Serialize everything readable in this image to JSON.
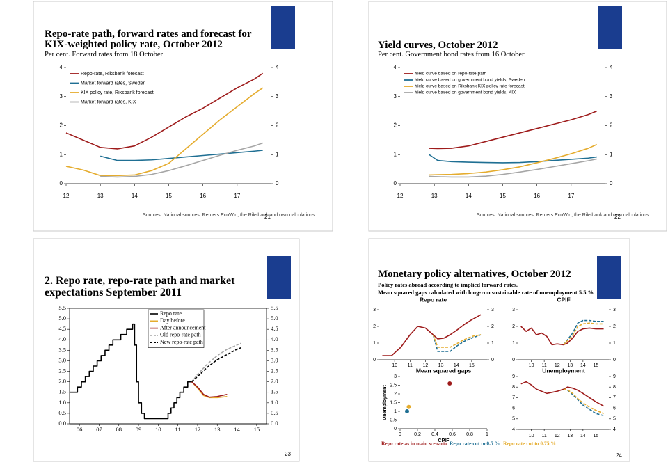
{
  "slides": [
    {
      "title": "Repo-rate path, forward rates and forecast for KIX-weighted policy rate, October 2012",
      "subtitle": "Per cent. Forward rates from 18 October",
      "source": "Sources: National sources, Reuters EcoWin, the Riksbank and own calculations",
      "page": "21"
    },
    {
      "title": "Yield curves, October 2012",
      "subtitle": "Per cent. Government bond rates from 16 October",
      "source": "Sources: National sources, Reuters EcoWin, the Riksbank and own calculations",
      "page": "22"
    },
    {
      "title": "2. Repo rate, repo-rate path and market expectations September 2011",
      "page": "23"
    },
    {
      "title": "Monetary policy alternatives, October 2012",
      "subtitle": "Policy rates abroad according to implied forward rates.",
      "note": "Mean squared gaps calculated with long-run sustainable rate of unemployment 5.5 %",
      "page": "24"
    }
  ],
  "chart_data": [
    {
      "type": "line",
      "x": [
        12,
        12.5,
        13,
        13.5,
        14,
        14.5,
        15,
        15.5,
        16,
        16.5,
        17,
        17.5,
        17.75
      ],
      "xlim": [
        12,
        18
      ],
      "xticks": [
        12,
        13,
        14,
        15,
        16,
        17
      ],
      "ylim": [
        0,
        4
      ],
      "yticks": [
        0,
        1,
        2,
        3,
        4
      ],
      "y2lim": [
        0,
        4
      ],
      "y2ticks": [
        0,
        1,
        2,
        3,
        4
      ],
      "legend": "upper left",
      "series": [
        {
          "name": "Repo-rate, Riksbank forecast",
          "color": "#9e1b1b",
          "values": [
            1.75,
            1.5,
            1.25,
            1.2,
            1.3,
            1.6,
            1.95,
            2.3,
            2.6,
            2.95,
            3.3,
            3.6,
            3.8
          ]
        },
        {
          "name": "Market forward rates, Sweden",
          "color": "#1f6f93",
          "values": [
            null,
            null,
            0.95,
            0.8,
            0.8,
            0.82,
            0.87,
            0.92,
            0.97,
            1.02,
            1.07,
            1.12,
            1.15
          ]
        },
        {
          "name": "KIX policy rate, Riksbank forecast",
          "color": "#e5ac2e",
          "values": [
            0.6,
            0.47,
            0.28,
            0.28,
            0.3,
            0.45,
            0.7,
            1.2,
            1.7,
            2.2,
            2.65,
            3.1,
            3.3
          ]
        },
        {
          "name": "Market forward rates, KIX",
          "color": "#a6a6a6",
          "values": [
            null,
            null,
            0.25,
            0.23,
            0.25,
            0.32,
            0.45,
            0.62,
            0.8,
            0.98,
            1.15,
            1.3,
            1.4
          ]
        }
      ]
    },
    {
      "type": "line",
      "x": [
        12.85,
        13.1,
        13.5,
        14,
        14.5,
        15,
        15.5,
        16,
        16.5,
        17,
        17.5,
        17.75
      ],
      "xlim": [
        12,
        18
      ],
      "xticks": [
        12,
        13,
        14,
        15,
        16,
        17
      ],
      "ylim": [
        0,
        4
      ],
      "yticks": [
        0,
        1,
        2,
        3,
        4
      ],
      "y2lim": [
        0,
        4
      ],
      "y2ticks": [
        0,
        1,
        2,
        3,
        4
      ],
      "legend": "upper left",
      "series": [
        {
          "name": "Yield curve based on repo-rate path",
          "color": "#9e1b1b",
          "values": [
            1.22,
            1.21,
            1.22,
            1.3,
            1.45,
            1.6,
            1.75,
            1.9,
            2.05,
            2.2,
            2.38,
            2.5
          ]
        },
        {
          "name": "Yield curve based on government bond yields, Sweden",
          "color": "#1f6f93",
          "values": [
            1.0,
            0.8,
            0.76,
            0.74,
            0.73,
            0.72,
            0.73,
            0.76,
            0.8,
            0.84,
            0.88,
            0.92
          ]
        },
        {
          "name": "Yield curve based on Riksbank KIX policy rate forecast",
          "color": "#e5ac2e",
          "values": [
            0.3,
            0.31,
            0.32,
            0.35,
            0.4,
            0.48,
            0.58,
            0.72,
            0.87,
            1.03,
            1.22,
            1.35
          ]
        },
        {
          "name": "Yield curve based on government bond yields, KIX",
          "color": "#a6a6a6",
          "values": [
            0.25,
            0.24,
            0.23,
            0.23,
            0.26,
            0.32,
            0.4,
            0.49,
            0.59,
            0.69,
            0.79,
            0.85
          ]
        }
      ]
    },
    {
      "type": "line",
      "xlim": [
        5.5,
        15.5
      ],
      "xticks": [
        {
          "value": 6,
          "label": "06"
        },
        {
          "value": 7,
          "label": "07"
        },
        {
          "value": 8,
          "label": "08"
        },
        {
          "value": 9,
          "label": "09"
        },
        10,
        11,
        12,
        13,
        14,
        15
      ],
      "ylim": [
        0,
        5.5
      ],
      "yticks": [
        {
          "value": 0,
          "label": "0.0"
        },
        {
          "value": 0.5,
          "label": "0.5"
        },
        {
          "value": 1,
          "label": "1.0"
        },
        {
          "value": 1.5,
          "label": "1.5"
        },
        {
          "value": 2,
          "label": "2.0"
        },
        {
          "value": 2.5,
          "label": "2.5"
        },
        {
          "value": 3,
          "label": "3.0"
        },
        {
          "value": 3.5,
          "label": "3.5"
        },
        {
          "value": 4,
          "label": "4.0"
        },
        {
          "value": 4.5,
          "label": "4.5"
        },
        {
          "value": 5,
          "label": "5.0"
        },
        {
          "value": 5.5,
          "label": "5.5"
        }
      ],
      "y2lim": [
        0,
        5.5
      ],
      "y2ticks": [
        {
          "value": 0,
          "label": "0.0"
        },
        {
          "value": 0.5,
          "label": "0.5"
        },
        {
          "value": 1,
          "label": "1.0"
        },
        {
          "value": 1.5,
          "label": "1.5"
        },
        {
          "value": 2,
          "label": "2.0"
        },
        {
          "value": 2.5,
          "label": "2.5"
        },
        {
          "value": 3,
          "label": "3.0"
        },
        {
          "value": 3.5,
          "label": "3.5"
        },
        {
          "value": 4,
          "label": "4.0"
        },
        {
          "value": 4.5,
          "label": "4.5"
        },
        {
          "value": 5,
          "label": "5.0"
        },
        {
          "value": 5.5,
          "label": "5.5"
        }
      ],
      "legend": "upper center",
      "series": [
        {
          "name": "Repo rate",
          "color": "#000000",
          "x": [
            5.5,
            5.9,
            5.9,
            6.1,
            6.1,
            6.3,
            6.3,
            6.5,
            6.5,
            6.7,
            6.7,
            6.9,
            6.9,
            7.1,
            7.1,
            7.3,
            7.3,
            7.5,
            7.5,
            7.7,
            7.7,
            8.1,
            8.1,
            8.4,
            8.4,
            8.7,
            8.7,
            8.8,
            8.8,
            8.9,
            8.9,
            9.0,
            9.0,
            9.15,
            9.15,
            9.3,
            9.3,
            10.5,
            10.5,
            10.65,
            10.65,
            10.8,
            10.8,
            10.95,
            10.95,
            11.1,
            11.1,
            11.3,
            11.3,
            11.5,
            11.5,
            11.7
          ],
          "values": [
            1.5,
            1.5,
            1.75,
            1.75,
            2.0,
            2.0,
            2.25,
            2.25,
            2.5,
            2.5,
            2.75,
            2.75,
            3.0,
            3.0,
            3.25,
            3.25,
            3.5,
            3.5,
            3.75,
            3.75,
            4.0,
            4.0,
            4.25,
            4.25,
            4.5,
            4.5,
            4.75,
            4.75,
            3.75,
            3.75,
            2.0,
            2.0,
            1.0,
            1.0,
            0.5,
            0.5,
            0.25,
            0.25,
            0.5,
            0.5,
            0.75,
            0.75,
            1.0,
            1.0,
            1.25,
            1.25,
            1.5,
            1.5,
            1.75,
            1.75,
            2.0,
            2.0
          ]
        },
        {
          "name": "Day before",
          "color": "#e5ac2e",
          "x": [
            11.7,
            12.0,
            12.3,
            12.6,
            13.0,
            13.5
          ],
          "values": [
            2.0,
            1.7,
            1.35,
            1.25,
            1.25,
            1.3
          ]
        },
        {
          "name": "After announcement",
          "color": "#9e1b1b",
          "x": [
            11.7,
            12.0,
            12.3,
            12.6,
            13.0,
            13.5
          ],
          "values": [
            2.0,
            1.75,
            1.4,
            1.27,
            1.3,
            1.4
          ]
        },
        {
          "name": "Old repo-rate path",
          "color": "#a6a6a6",
          "dash": true,
          "x": [
            11.7,
            12.0,
            12.5,
            13.0,
            13.5,
            14.0,
            14.2
          ],
          "values": [
            2.0,
            2.35,
            2.85,
            3.25,
            3.55,
            3.75,
            3.83
          ]
        },
        {
          "name": "New repo-rate path",
          "color": "#000000",
          "dash": true,
          "x": [
            11.7,
            12.0,
            12.5,
            13.0,
            13.5,
            14.0,
            14.2
          ],
          "values": [
            2.0,
            2.25,
            2.7,
            3.05,
            3.3,
            3.55,
            3.62
          ]
        }
      ]
    },
    {
      "type": "line",
      "title": "Repo rate",
      "x": [
        9.2,
        9.8,
        10.4,
        11.0,
        11.5,
        12.0,
        12.5,
        12.8,
        13.2,
        13.6,
        14.0,
        14.5,
        15.0,
        15.6
      ],
      "xlim": [
        9,
        16
      ],
      "xticks": [
        10,
        11,
        12,
        13,
        14,
        15
      ],
      "ylim": [
        0,
        3
      ],
      "yticks": [
        0,
        1,
        2,
        3
      ],
      "y2lim": [
        0,
        3
      ],
      "y2ticks": [
        0,
        1,
        2,
        3
      ],
      "legend": "bottom",
      "series": [
        {
          "name": "Repo rate as in main scenario",
          "color": "#9e1b1b",
          "values": [
            0.25,
            0.25,
            0.75,
            1.5,
            2.0,
            1.9,
            1.5,
            1.25,
            1.3,
            1.5,
            1.75,
            2.1,
            2.4,
            2.7
          ]
        },
        {
          "name": "Repo rate cut to 0.5 %",
          "color": "#1f6f93",
          "dash": true,
          "values": [
            null,
            null,
            null,
            null,
            null,
            null,
            1.5,
            0.5,
            0.5,
            0.5,
            0.8,
            1.1,
            1.3,
            1.5
          ]
        },
        {
          "name": "Repo rate cut to 0.75 %",
          "color": "#e5ac2e",
          "dash": true,
          "values": [
            null,
            null,
            null,
            null,
            null,
            null,
            1.5,
            0.75,
            0.75,
            0.75,
            0.95,
            1.2,
            1.4,
            1.5
          ]
        }
      ]
    },
    {
      "type": "line",
      "title": "CPIF",
      "x": [
        9.2,
        9.6,
        10.0,
        10.4,
        10.8,
        11.2,
        11.6,
        12.0,
        12.5,
        12.8,
        13.2,
        13.6,
        14.0,
        14.5,
        15.0,
        15.6
      ],
      "xlim": [
        9,
        16
      ],
      "xticks": [
        10,
        11,
        12,
        13,
        14,
        15
      ],
      "ylim": [
        0,
        3
      ],
      "yticks": [
        0,
        1,
        2,
        3
      ],
      "y2lim": [
        0,
        3
      ],
      "y2ticks": [
        0,
        1,
        2,
        3
      ],
      "series": [
        {
          "color": "#9e1b1b",
          "values": [
            2.0,
            1.7,
            1.9,
            1.5,
            1.6,
            1.4,
            0.9,
            0.95,
            0.9,
            1.0,
            1.3,
            1.7,
            1.85,
            1.9,
            1.85,
            1.85
          ]
        },
        {
          "color": "#1f6f93",
          "dash": true,
          "values": [
            null,
            null,
            null,
            null,
            null,
            null,
            null,
            null,
            0.9,
            1.2,
            1.6,
            2.2,
            2.35,
            2.35,
            2.3,
            2.3
          ]
        },
        {
          "color": "#e5ac2e",
          "dash": true,
          "values": [
            null,
            null,
            null,
            null,
            null,
            null,
            null,
            null,
            0.9,
            1.15,
            1.45,
            2.0,
            2.15,
            2.2,
            2.15,
            2.15
          ]
        }
      ]
    },
    {
      "type": "scatter",
      "title": "Mean squared gaps",
      "x_label": "CPIF",
      "y_label": "Unemployment",
      "xlim": [
        0,
        1
      ],
      "xticks": [
        0,
        0.2,
        0.4,
        0.6,
        0.8,
        1
      ],
      "ylim": [
        0,
        3
      ],
      "yticks": [
        0,
        0.5,
        1,
        1.5,
        2,
        2.5,
        3
      ],
      "series": [
        {
          "color": "#9e1b1b",
          "x": [
            0.57
          ],
          "values": [
            2.6
          ]
        },
        {
          "color": "#e5ac2e",
          "x": [
            0.1
          ],
          "values": [
            1.25
          ]
        },
        {
          "color": "#1f6f93",
          "x": [
            0.08
          ],
          "values": [
            1.0
          ]
        }
      ]
    },
    {
      "type": "line",
      "title": "Unemployment",
      "x": [
        9.2,
        9.6,
        10.0,
        10.4,
        10.8,
        11.2,
        11.6,
        12.0,
        12.5,
        12.8,
        13.2,
        13.6,
        14.0,
        14.5,
        15.0,
        15.6
      ],
      "xlim": [
        9,
        16
      ],
      "xticks": [
        10,
        11,
        12,
        13,
        14,
        15
      ],
      "ylim": [
        4,
        9
      ],
      "yticks": [
        4,
        5,
        6,
        7,
        8,
        9
      ],
      "y2lim": [
        4,
        9
      ],
      "y2ticks": [
        4,
        5,
        6,
        7,
        8,
        9
      ],
      "series": [
        {
          "color": "#9e1b1b",
          "values": [
            8.3,
            8.5,
            8.2,
            7.8,
            7.6,
            7.4,
            7.5,
            7.6,
            7.8,
            8.0,
            7.9,
            7.7,
            7.4,
            7.0,
            6.6,
            6.2
          ]
        },
        {
          "color": "#1f6f93",
          "dash": true,
          "values": [
            null,
            null,
            null,
            null,
            null,
            null,
            null,
            null,
            7.8,
            7.7,
            7.3,
            6.8,
            6.3,
            5.9,
            5.5,
            5.3
          ]
        },
        {
          "color": "#e5ac2e",
          "dash": true,
          "values": [
            null,
            null,
            null,
            null,
            null,
            null,
            null,
            null,
            7.8,
            7.75,
            7.4,
            6.9,
            6.5,
            6.1,
            5.8,
            5.5
          ]
        }
      ]
    }
  ]
}
